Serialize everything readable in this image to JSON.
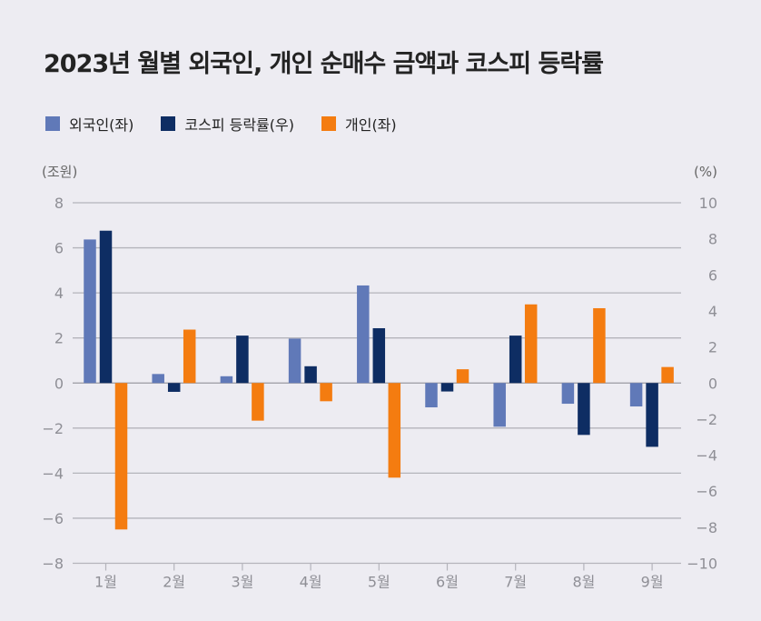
{
  "chart_data": {
    "type": "bar",
    "title": "2023년 월별 외국인, 개인 순매수 금액과 코스피 등락률",
    "categories": [
      "1월",
      "2월",
      "3월",
      "4월",
      "5월",
      "6월",
      "7월",
      "8월",
      "9월"
    ],
    "series": [
      {
        "name": "외국인(좌)",
        "axis": "left",
        "color": "#6079b8",
        "values": [
          6.37,
          0.4,
          0.3,
          1.97,
          4.33,
          -1.08,
          -1.94,
          -0.92,
          -1.04
        ]
      },
      {
        "name": "코스피 등락률(우)",
        "axis": "right",
        "color": "#0e2d63",
        "values": [
          8.45,
          -0.49,
          2.63,
          0.93,
          3.04,
          -0.47,
          2.63,
          -2.88,
          -3.54
        ]
      },
      {
        "name": "개인(좌)",
        "axis": "left",
        "color": "#f47c10",
        "values": [
          -6.5,
          2.37,
          -1.67,
          -0.81,
          -4.2,
          0.61,
          3.49,
          3.32,
          0.71
        ]
      }
    ],
    "left_axis": {
      "unit": "(조원)",
      "ylim": [
        -8,
        8
      ],
      "ticks": [
        8,
        6,
        4,
        2,
        0,
        -2,
        -4,
        -6,
        -8
      ]
    },
    "right_axis": {
      "unit": "(%)",
      "ylim": [
        -10,
        10
      ],
      "ticks": [
        10,
        8,
        6,
        4,
        2,
        0,
        -2,
        -4,
        -6,
        -8,
        -10
      ]
    },
    "grid": true,
    "legend_position": "top-left"
  }
}
